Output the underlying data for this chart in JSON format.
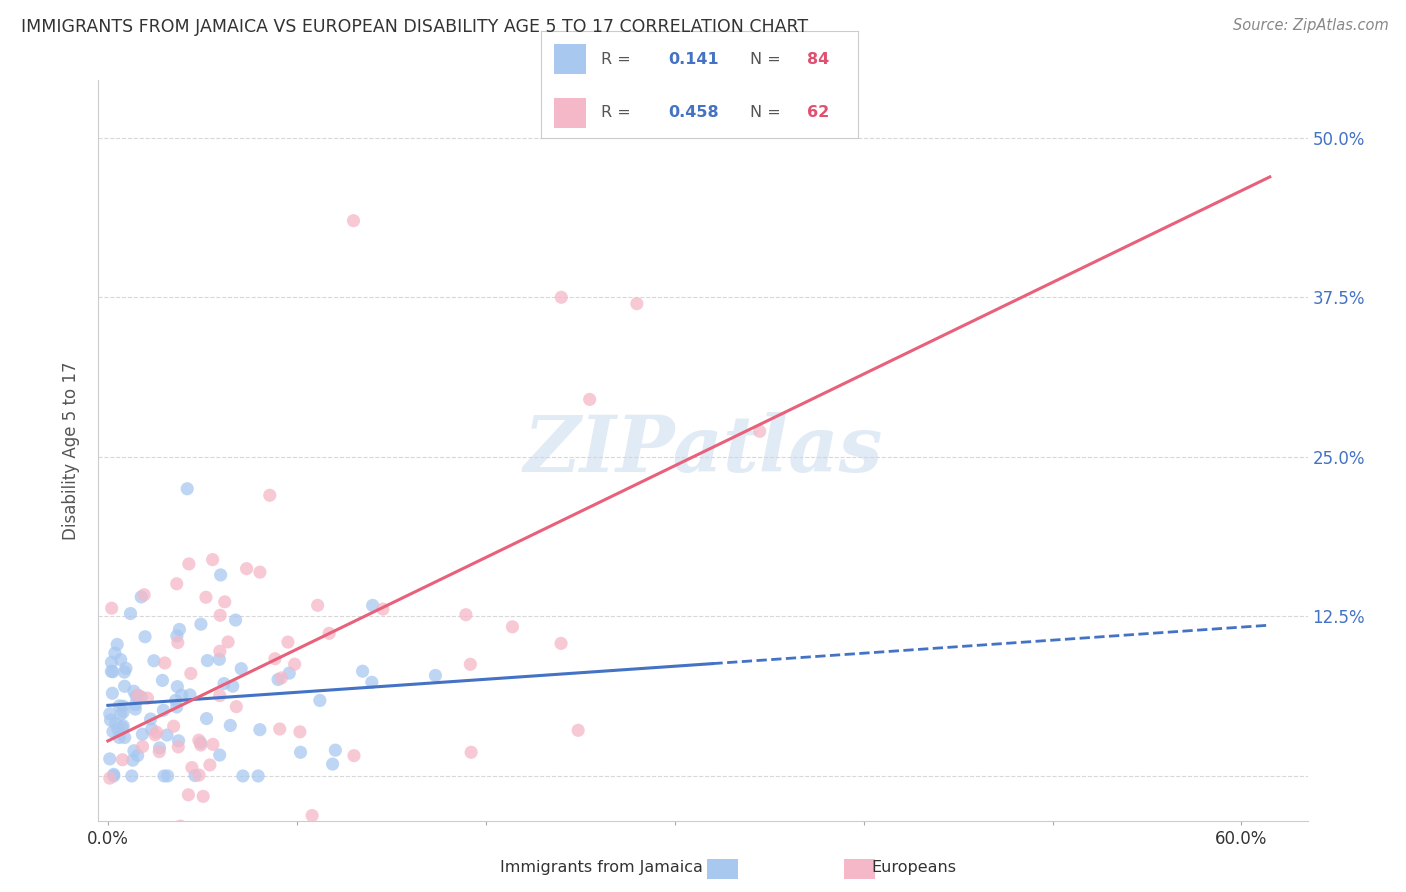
{
  "title": "IMMIGRANTS FROM JAMAICA VS EUROPEAN DISABILITY AGE 5 TO 17 CORRELATION CHART",
  "source": "Source: ZipAtlas.com",
  "ylabel": "Disability Age 5 to 17",
  "xlim": [
    -0.005,
    0.635
  ],
  "ylim": [
    -0.035,
    0.545
  ],
  "yticks": [
    0.0,
    0.125,
    0.25,
    0.375,
    0.5
  ],
  "ytick_labels": [
    "",
    "12.5%",
    "25.0%",
    "37.5%",
    "50.0%"
  ],
  "blue_color": "#a8c8f0",
  "pink_color": "#f5b8c8",
  "blue_line_color": "#4472c4",
  "pink_line_color": "#e8607a",
  "R_blue": 0.141,
  "N_blue": 84,
  "R_pink": 0.458,
  "N_pink": 62,
  "watermark": "ZIPatlas",
  "background_color": "#ffffff",
  "grid_color": "#d8d8d8",
  "blue_seed": 42,
  "pink_seed": 7,
  "legend_text_color": "#4472c4",
  "legend_R_label_color": "#444444"
}
